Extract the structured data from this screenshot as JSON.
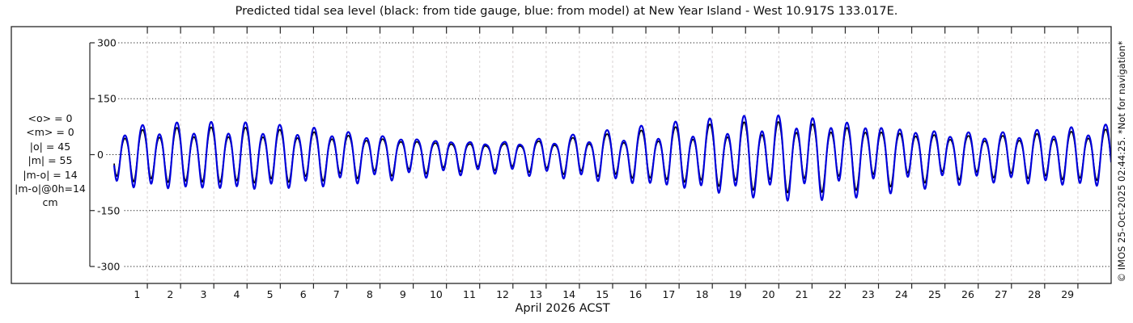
{
  "title": "Predicted tidal sea level (black: from tide gauge, blue: from model) at New Year Island - West 10.917S 133.017E.",
  "stats_panel": {
    "lines": [
      "<o> = 0",
      "<m> = 0",
      "|o| = 45",
      "|m| = 55",
      "|m-o| = 14",
      "|m-o|@0h=14",
      "cm"
    ]
  },
  "watermark": "© IMOS 25-Oct-2025 02:44:25. *Not for navigation*",
  "colors": {
    "gauge": "#000000",
    "model": "#0000dd",
    "frame": "#262626",
    "h_grid": "#1a1a1a",
    "v_grid": "#d8d2d2",
    "text": "#111111"
  },
  "chart_data": {
    "type": "line",
    "title": "Predicted tidal sea level (black: from tide gauge, blue: from model) at New Year Island - West 10.917S 133.017E.",
    "xlabel": "April 2026 ACST",
    "ylabel": "",
    "y_unit": "cm",
    "ylim_labeled": [
      -300,
      300
    ],
    "yticks": [
      300,
      150,
      0,
      -150,
      -300
    ],
    "x_range_days": [
      0,
      30
    ],
    "xticks": [
      1,
      2,
      3,
      4,
      5,
      6,
      7,
      8,
      9,
      10,
      11,
      12,
      13,
      14,
      15,
      16,
      17,
      18,
      19,
      20,
      21,
      22,
      23,
      24,
      25,
      26,
      27,
      28,
      29
    ],
    "grid": {
      "horizontal": "black dotted at yticks",
      "vertical": "light gray dashed at day boundaries"
    },
    "legend": [
      {
        "name": "from tide gauge",
        "color": "#000000"
      },
      {
        "name": "from model",
        "color": "#0000dd"
      }
    ],
    "series": [
      {
        "name": "from tide gauge",
        "color": "#000000",
        "width": 1.7,
        "scale": 0.83,
        "asym_cm": 6
      },
      {
        "name": "from model",
        "color": "#0000dd",
        "width": 2.1,
        "scale": 1.0,
        "asym_cm": 8
      }
    ],
    "synthesis": {
      "comment": "mixed semidiurnal tide: level(t) = E2(t)*cos(w2*(t-p2)) + E1(t)*cos(w1*(t-p1)) - asym*cos(2*w2*(t-p2)); envelopes linearly interpolated; neap near day 11, spring near day 20",
      "semidiurnal_period_days": 0.51753,
      "diurnal_period_days": 0.99727,
      "semidiurnal_phase_peak_day": 20.0,
      "diurnal_phase_peak_day": 19.87,
      "semidiurnal_envelope_cm": [
        [
          0,
          70
        ],
        [
          2,
          80
        ],
        [
          4,
          80
        ],
        [
          6,
          70
        ],
        [
          8,
          54
        ],
        [
          10,
          42
        ],
        [
          11.5,
          36
        ],
        [
          13,
          44
        ],
        [
          15,
          60
        ],
        [
          17,
          76
        ],
        [
          19,
          90
        ],
        [
          20.5,
          94
        ],
        [
          22,
          86
        ],
        [
          23.5,
          74
        ],
        [
          25,
          62
        ],
        [
          26.5,
          58
        ],
        [
          28,
          66
        ],
        [
          30,
          76
        ]
      ],
      "diurnal_envelope_cm": [
        [
          0,
          14
        ],
        [
          3,
          16
        ],
        [
          6,
          14
        ],
        [
          9,
          9
        ],
        [
          11,
          7
        ],
        [
          14,
          14
        ],
        [
          17,
          22
        ],
        [
          20,
          29
        ],
        [
          22,
          26
        ],
        [
          24,
          19
        ],
        [
          26,
          13
        ],
        [
          28,
          11
        ],
        [
          30,
          14
        ]
      ]
    }
  }
}
